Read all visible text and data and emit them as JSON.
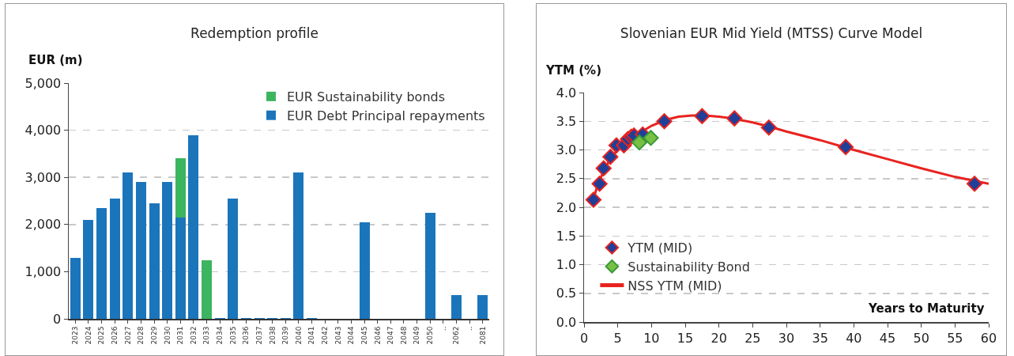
{
  "chart_data": [
    {
      "type": "bar",
      "title": "Redemption profile",
      "ylabel": "EUR (m)",
      "stacked": true,
      "legend": "top right",
      "grid": "y",
      "categories": [
        "2023",
        "2024",
        "2025",
        "2026",
        "2027",
        "2028",
        "2029",
        "2030",
        "2031",
        "2032",
        "2033",
        "2034",
        "2035",
        "2036",
        "2037",
        "2038",
        "2039",
        "2040",
        "2041",
        "2042",
        "2043",
        "2044",
        "2045",
        "2046",
        "2047",
        "2048",
        "2049",
        "2050",
        "..",
        "2062",
        "..",
        "2081"
      ],
      "series": [
        {
          "name": "EUR Debt Principal repayments",
          "color": "#1b75bb",
          "values": [
            1300,
            2100,
            2350,
            2550,
            3100,
            2900,
            2450,
            2900,
            2150,
            3900,
            0,
            20,
            2550,
            20,
            20,
            20,
            20,
            3100,
            20,
            0,
            0,
            0,
            2050,
            0,
            0,
            0,
            0,
            2250,
            0,
            500,
            0,
            500
          ]
        },
        {
          "name": "EUR Sustainability bonds",
          "color": "#3cb460",
          "values": [
            0,
            0,
            0,
            0,
            0,
            0,
            0,
            0,
            1250,
            0,
            1250,
            0,
            0,
            0,
            0,
            0,
            0,
            0,
            0,
            0,
            0,
            0,
            0,
            0,
            0,
            0,
            0,
            0,
            0,
            0,
            0,
            0
          ]
        }
      ],
      "ylim": [
        0,
        5000
      ],
      "yticks": [
        0,
        {
          "value": 1000,
          "label": "1,000"
        },
        {
          "value": 2000,
          "label": "2,000"
        },
        {
          "value": 3000,
          "label": "3,000"
        },
        {
          "value": 4000,
          "label": "4,000"
        },
        {
          "value": 5000,
          "label": "5,000"
        }
      ]
    },
    {
      "type": "scatter",
      "title": "Slovenian EUR Mid Yield (MTSS) Curve Model",
      "xlabel": "Years to Maturity",
      "ylabel": "YTM (%)",
      "legend": "bottom left",
      "grid": "y",
      "series": [
        {
          "name": "YTM (MID)",
          "marker": "diamond",
          "color": "#1f3f99",
          "x": [
            1.4,
            2.3,
            2.9,
            3.9,
            4.8,
            5.9,
            6.5,
            7.0,
            7.4,
            8.7,
            11.9,
            17.5,
            22.3,
            27.4,
            38.8,
            57.9
          ],
          "values": [
            2.13,
            2.41,
            2.68,
            2.88,
            3.08,
            3.08,
            3.19,
            3.23,
            3.25,
            3.27,
            3.5,
            3.59,
            3.55,
            3.39,
            3.05,
            2.41
          ]
        },
        {
          "name": "Sustainability Bond",
          "marker": "diamond",
          "color": "#77c043",
          "x": [
            8.2,
            9.9
          ],
          "values": [
            3.13,
            3.21
          ]
        },
        {
          "name": "NSS YTM (MID)",
          "type": "line",
          "color": "#e8231f",
          "x": [
            1.2,
            2,
            3,
            4,
            5,
            6,
            7,
            8,
            10,
            12,
            14,
            16,
            18,
            20,
            22,
            25,
            28,
            30,
            35,
            40,
            45,
            50,
            55,
            60
          ],
          "values": [
            2.08,
            2.38,
            2.66,
            2.86,
            3.0,
            3.1,
            3.2,
            3.28,
            3.42,
            3.52,
            3.58,
            3.6,
            3.6,
            3.58,
            3.55,
            3.48,
            3.39,
            3.32,
            3.17,
            3.0,
            2.84,
            2.68,
            2.53,
            2.41
          ]
        }
      ],
      "xlim": [
        0,
        60
      ],
      "xticks": [
        0,
        5,
        10,
        15,
        20,
        25,
        30,
        35,
        40,
        45,
        50,
        55,
        60
      ],
      "ylim": [
        0,
        4
      ],
      "yticks": [
        {
          "value": 0,
          "label": "0.0"
        },
        0.5,
        {
          "value": 1,
          "label": "1.0"
        },
        1.5,
        {
          "value": 2,
          "label": "2.0"
        },
        2.5,
        {
          "value": 3,
          "label": "3.0"
        },
        3.5,
        {
          "value": 4,
          "label": "4.0"
        }
      ]
    }
  ]
}
